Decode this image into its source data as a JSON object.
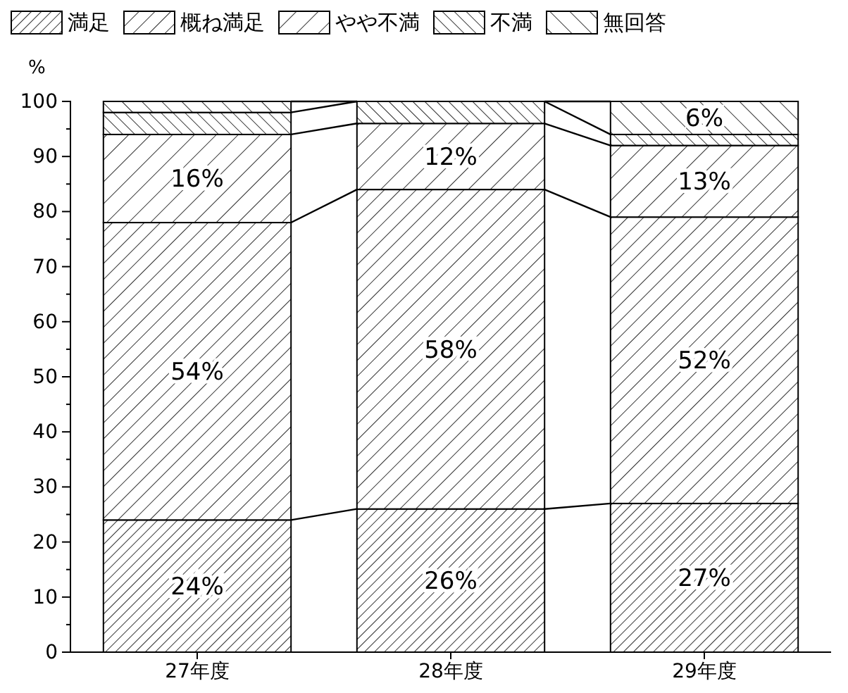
{
  "chart_data": {
    "type": "bar",
    "stacked": true,
    "ylabel": "%",
    "categories": [
      "27年度",
      "28年度",
      "29年度"
    ],
    "series": [
      {
        "name": "満足",
        "color": "#000000",
        "values": [
          24,
          26,
          27
        ],
        "value_labels": [
          "24%",
          "26%",
          "27%"
        ]
      },
      {
        "name": "概ね満足",
        "color": "#000000",
        "values": [
          54,
          58,
          52
        ],
        "value_labels": [
          "54%",
          "58%",
          "52%"
        ]
      },
      {
        "name": "やや不満",
        "color": "#000000",
        "values": [
          16,
          12,
          13
        ],
        "value_labels": [
          "16%",
          "12%",
          "13%"
        ]
      },
      {
        "name": "不満",
        "color": "#000000",
        "values": [
          4,
          4,
          2
        ],
        "value_labels": [
          null,
          null,
          null
        ]
      },
      {
        "name": "無回答",
        "color": "#000000",
        "values": [
          2,
          0,
          6
        ],
        "value_labels": [
          null,
          null,
          "6%"
        ]
      }
    ],
    "ylim": [
      0,
      100
    ],
    "yticks": [
      0,
      10,
      20,
      30,
      40,
      50,
      60,
      70,
      80,
      90,
      100
    ],
    "legend": "top",
    "grid": false
  }
}
